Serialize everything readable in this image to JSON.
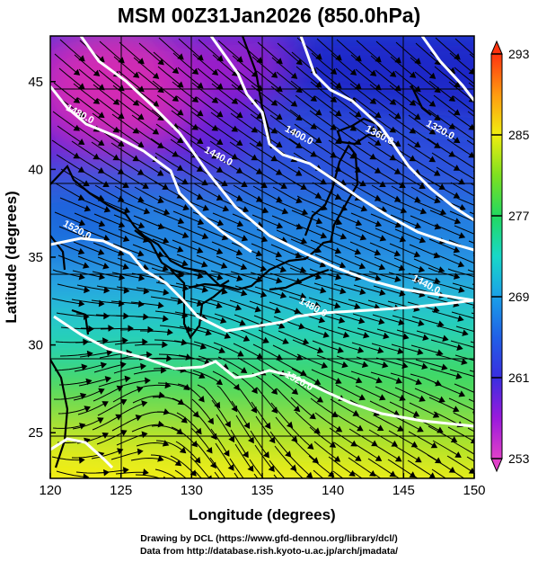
{
  "title": "MSM 00Z31Jan2026 (850.0hPa)",
  "xlabel": "Longitude (degrees)",
  "ylabel": "Latitude  (degrees)",
  "x_ticks": [
    120,
    125,
    130,
    135,
    140,
    145,
    150
  ],
  "y_ticks": [
    25,
    30,
    35,
    40,
    45
  ],
  "extent": {
    "lon": [
      120,
      150
    ],
    "lat": [
      22.4,
      47.6
    ]
  },
  "colorbar": {
    "ticks": [
      253,
      261,
      269,
      277,
      285,
      293
    ],
    "range": [
      253,
      293
    ]
  },
  "contours": [
    {
      "label": "1320.0",
      "lon": 147.5,
      "lat": 42.1
    },
    {
      "label": "1360.0",
      "lon": 143.2,
      "lat": 41.8
    },
    {
      "label": "1400.0",
      "lon": 137.5,
      "lat": 41.8
    },
    {
      "label": "1440.0",
      "lon": 131.8,
      "lat": 40.6
    },
    {
      "label": "1480.0",
      "lon": 122.0,
      "lat": 43.0
    },
    {
      "label": "1520.0",
      "lon": 121.8,
      "lat": 36.4
    },
    {
      "label": "1480.0",
      "lon": 138.5,
      "lat": 32.0
    },
    {
      "label": "1440.0",
      "lon": 146.5,
      "lat": 33.3
    },
    {
      "label": "1520.0",
      "lon": 137.5,
      "lat": 27.8
    }
  ],
  "credits": {
    "line1": "Drawing by DCL (https://www.gfd-dennou.org/library/dcl/)",
    "line2": "Data from http://database.rish.kyoto-u.ac.jp/arch/jmadata/"
  }
}
